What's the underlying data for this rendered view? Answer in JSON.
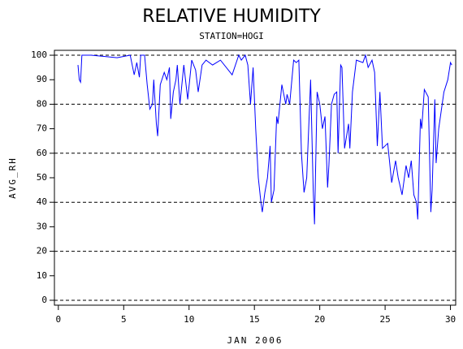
{
  "chart_data": {
    "type": "line",
    "title": "RELATIVE HUMIDITY",
    "subtitle": "STATION=HOGI",
    "x_label": "JAN 2006",
    "y_label": "AVG_RH",
    "xlim": [
      -0.3,
      30.4
    ],
    "ylim": [
      -2,
      102
    ],
    "xticks": [
      0,
      5,
      10,
      15,
      20,
      25,
      30
    ],
    "yticks": [
      0,
      10,
      20,
      30,
      40,
      50,
      60,
      70,
      80,
      90,
      100
    ],
    "grid_lines": [
      0,
      20,
      40,
      60,
      80,
      100
    ],
    "series": [
      {
        "name": "AVG_RH",
        "color": "#0000ff",
        "x": [
          1.5,
          1.6,
          1.7,
          1.8,
          2.5,
          3.5,
          4.5,
          5.0,
          5.5,
          5.8,
          6.0,
          6.2,
          6.3,
          6.6,
          6.8,
          7.0,
          7.2,
          7.3,
          7.5,
          7.6,
          7.8,
          8.1,
          8.3,
          8.5,
          8.6,
          8.8,
          9.0,
          9.1,
          9.3,
          9.6,
          9.9,
          10.2,
          10.5,
          10.7,
          11.0,
          11.3,
          11.8,
          12.4,
          13.3,
          13.8,
          14.0,
          14.3,
          14.5,
          14.7,
          14.9,
          15.1,
          15.3,
          15.5,
          15.6,
          15.8,
          16.0,
          16.2,
          16.3,
          16.5,
          16.7,
          16.8,
          17.1,
          17.4,
          17.5,
          17.7,
          18.0,
          18.2,
          18.4,
          18.6,
          18.8,
          19.0,
          19.3,
          19.5,
          19.6,
          19.8,
          20.0,
          20.2,
          20.4,
          20.6,
          20.7,
          20.9,
          21.1,
          21.3,
          21.4,
          21.6,
          21.7,
          21.9,
          22.2,
          22.3,
          22.5,
          22.8,
          23.3,
          23.5,
          23.7,
          24.0,
          24.2,
          24.4,
          24.6,
          24.8,
          25.2,
          25.5,
          25.8,
          26.0,
          26.3,
          26.6,
          26.8,
          27.0,
          27.2,
          27.4,
          27.5,
          27.7,
          27.8,
          28.0,
          28.3,
          28.5,
          28.6,
          28.8,
          28.9,
          29.1,
          29.5,
          29.8,
          30.0,
          30.1
        ],
        "values": [
          96,
          90,
          89,
          100,
          100,
          99.5,
          99,
          99.5,
          100,
          92,
          97,
          91,
          100,
          100,
          88,
          78,
          80,
          90,
          72,
          67,
          88,
          93,
          90,
          95,
          74,
          85,
          90,
          96,
          80,
          96,
          82,
          98,
          94,
          85,
          96,
          98,
          96,
          98,
          92,
          100,
          98,
          100,
          96,
          80,
          95,
          70,
          50,
          40,
          36,
          44,
          50,
          63,
          40,
          45,
          75,
          72,
          88,
          80,
          84,
          80,
          98,
          97,
          98,
          60,
          44,
          50,
          90,
          45,
          31,
          85,
          80,
          70,
          75,
          46,
          55,
          80,
          84,
          85,
          60,
          96,
          95,
          62,
          72,
          62,
          85,
          98,
          97,
          100,
          95,
          98,
          93,
          63,
          85,
          62,
          64,
          48,
          57,
          50,
          43,
          55,
          50,
          57,
          43,
          40,
          33,
          74,
          70,
          86,
          83,
          36,
          45,
          82,
          56,
          70,
          85,
          90,
          97,
          96
        ]
      }
    ]
  }
}
